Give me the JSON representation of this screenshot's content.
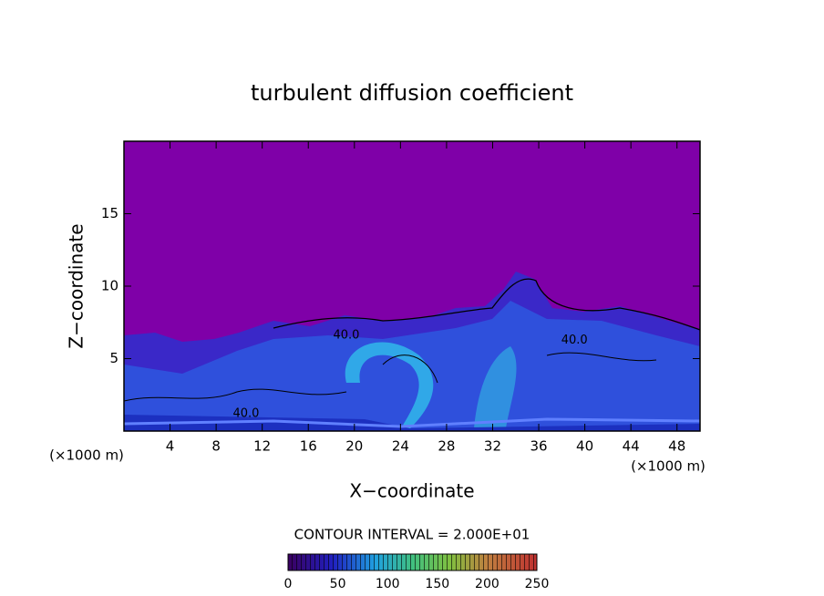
{
  "chart_data": {
    "type": "contour",
    "title": "turbulent diffusion coefficient",
    "x_label": "X−coordinate",
    "y_label": "Z−coordinate",
    "x_unit_label": "(×1000 m)",
    "y_unit_label": "(×1000 m)",
    "xlim": [
      0,
      50
    ],
    "ylim": [
      0,
      20
    ],
    "xticks": [
      4,
      8,
      12,
      16,
      20,
      24,
      28,
      32,
      36,
      40,
      44,
      48
    ],
    "yticks": [
      5,
      10,
      15
    ],
    "background_color": "#7f00a8",
    "contour_interval_label": "CONTOUR INTERVAL = 2.000E+01",
    "contour_labels": [
      {
        "x": 19.3,
        "y": 6.6,
        "label": "40.0"
      },
      {
        "x": 39.1,
        "y": 6.25,
        "label": "40.0"
      },
      {
        "x": 10.6,
        "y": 1.2,
        "label": "40.0"
      }
    ],
    "colorbar": {
      "range": [
        0,
        250
      ],
      "ticks": [
        0,
        50,
        100,
        150,
        200,
        250
      ]
    }
  }
}
